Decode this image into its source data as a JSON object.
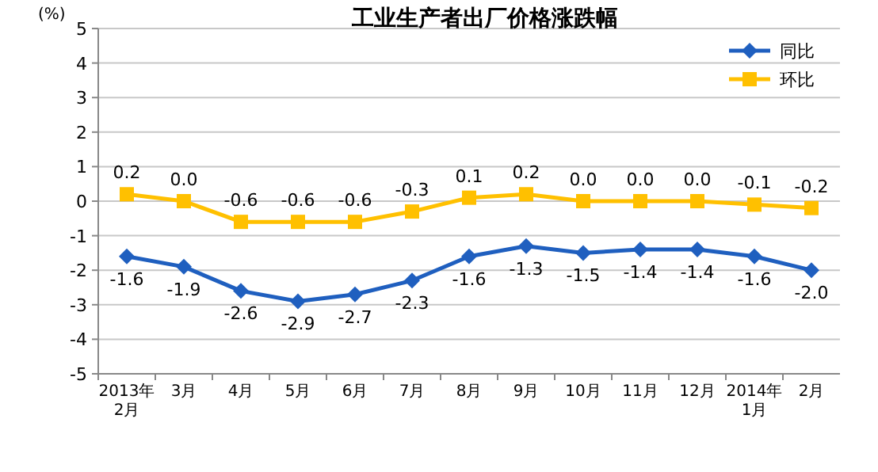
{
  "chart_data": {
    "type": "line",
    "title": "工业生产者出厂价格涨跌幅",
    "ylabel": "(%)",
    "categories": [
      "2013年\n2月",
      "3月",
      "4月",
      "5月",
      "6月",
      "7月",
      "8月",
      "9月",
      "10月",
      "11月",
      "12月",
      "2014年\n1月",
      "2月"
    ],
    "series": [
      {
        "name": "同比",
        "color": "#1f5fbf",
        "marker": "diamond",
        "values": [
          -1.6,
          -1.9,
          -2.6,
          -2.9,
          -2.7,
          -2.3,
          -1.6,
          -1.3,
          -1.5,
          -1.4,
          -1.4,
          -1.6,
          -2.0
        ],
        "value_labels": [
          "-1.6",
          "-1.9",
          "-2.6",
          "-2.9",
          "-2.7",
          "-2.3",
          "-1.6",
          "-1.3",
          "-1.5",
          "-1.4",
          "-1.4",
          "-1.6",
          "-2.0"
        ]
      },
      {
        "name": "环比",
        "color": "#ffc000",
        "marker": "square",
        "values": [
          0.2,
          0.0,
          -0.6,
          -0.6,
          -0.6,
          -0.3,
          0.1,
          0.2,
          0.0,
          0.0,
          0.0,
          -0.1,
          -0.2
        ],
        "value_labels": [
          "0.2",
          "0.0",
          "-0.6",
          "-0.6",
          "-0.6",
          "-0.3",
          "0.1",
          "0.2",
          "0.0",
          "0.0",
          "0.0",
          "-0.1",
          "-0.2"
        ]
      }
    ],
    "ylim": [
      -5,
      5
    ],
    "yticks": [
      -5,
      -4,
      -3,
      -2,
      -1,
      0,
      1,
      2,
      3,
      4,
      5
    ],
    "grid": "y",
    "legend": "top right",
    "line_style": "solid"
  }
}
